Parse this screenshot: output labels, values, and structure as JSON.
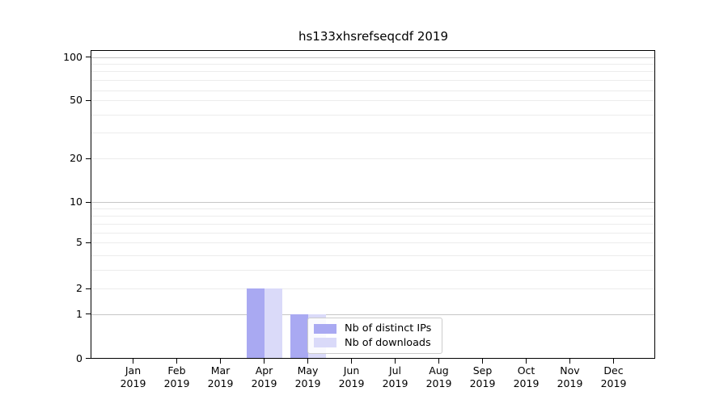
{
  "chart_data": {
    "type": "bar",
    "title": "hs133xhsrefseqcdf 2019",
    "categories": [
      "Jan",
      "Feb",
      "Mar",
      "Apr",
      "May",
      "Jun",
      "Jul",
      "Aug",
      "Sep",
      "Oct",
      "Nov",
      "Dec"
    ],
    "x_tick_second_line": "2019",
    "series": [
      {
        "name": "Nb of distinct IPs",
        "color": "#a9a9f2",
        "values": [
          0,
          0,
          0,
          2,
          1,
          0,
          0,
          0,
          0,
          0,
          0,
          0
        ]
      },
      {
        "name": "Nb of downloads",
        "color": "#dadaf9",
        "values": [
          0,
          0,
          0,
          2,
          1,
          0,
          0,
          0,
          0,
          0,
          0,
          0
        ]
      }
    ],
    "yscale": "symlog",
    "ylim": [
      0,
      110
    ],
    "y_ticks_labeled": [
      0,
      1,
      2,
      5,
      10,
      20,
      50,
      100
    ],
    "y_gridlines_major": [
      1,
      10,
      100
    ],
    "y_gridlines_minor": [
      2,
      3,
      4,
      5,
      6,
      7,
      8,
      9,
      20,
      30,
      40,
      50,
      60,
      70,
      80,
      90
    ],
    "grid": true,
    "legend": {
      "position": "lower-center",
      "entries": [
        "Nb of distinct IPs",
        "Nb of downloads"
      ]
    }
  },
  "colors": {
    "background": "#ffffff",
    "bar_distinct_ips": "#a9a9f2",
    "bar_downloads": "#dadaf9",
    "grid_major": "#c6c6c6",
    "grid_minor": "#ececec",
    "axis": "#000000",
    "text": "#000000",
    "legend_border": "#cccccc"
  }
}
